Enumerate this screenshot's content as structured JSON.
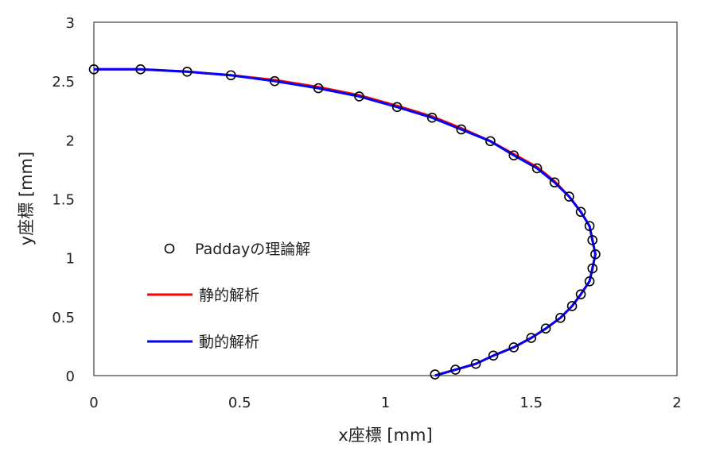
{
  "chart_data": {
    "type": "scatter",
    "xlabel": "x座標 [mm]",
    "ylabel": "y座標 [mm]",
    "xlim": [
      0,
      2
    ],
    "ylim": [
      0,
      3
    ],
    "xticks": [
      "0",
      "0.5",
      "1",
      "1.5",
      "2"
    ],
    "yticks": [
      "0",
      "0.5",
      "1",
      "1.5",
      "2",
      "2.5",
      "3"
    ],
    "grid": false,
    "legend_position": "center-left",
    "series": [
      {
        "name": "Paddayの理論解",
        "style": "markers",
        "color": "#000000",
        "points": [
          [
            0.0,
            2.6
          ],
          [
            0.16,
            2.6
          ],
          [
            0.32,
            2.58
          ],
          [
            0.47,
            2.55
          ],
          [
            0.62,
            2.5
          ],
          [
            0.77,
            2.44
          ],
          [
            0.91,
            2.37
          ],
          [
            1.04,
            2.28
          ],
          [
            1.16,
            2.19
          ],
          [
            1.26,
            2.09
          ],
          [
            1.36,
            1.99
          ],
          [
            1.44,
            1.87
          ],
          [
            1.52,
            1.76
          ],
          [
            1.58,
            1.64
          ],
          [
            1.63,
            1.52
          ],
          [
            1.67,
            1.39
          ],
          [
            1.7,
            1.27
          ],
          [
            1.71,
            1.15
          ],
          [
            1.72,
            1.03
          ],
          [
            1.71,
            0.91
          ],
          [
            1.7,
            0.8
          ],
          [
            1.67,
            0.69
          ],
          [
            1.64,
            0.59
          ],
          [
            1.6,
            0.49
          ],
          [
            1.55,
            0.4
          ],
          [
            1.5,
            0.32
          ],
          [
            1.44,
            0.24
          ],
          [
            1.37,
            0.17
          ],
          [
            1.31,
            0.1
          ],
          [
            1.24,
            0.05
          ],
          [
            1.17,
            0.01
          ]
        ]
      },
      {
        "name": "静的解析",
        "style": "line",
        "color": "#ff0000",
        "points": [
          [
            0.0,
            2.6
          ],
          [
            0.16,
            2.6
          ],
          [
            0.32,
            2.58
          ],
          [
            0.47,
            2.55
          ],
          [
            0.62,
            2.51
          ],
          [
            0.77,
            2.45
          ],
          [
            0.91,
            2.38
          ],
          [
            1.04,
            2.29
          ],
          [
            1.16,
            2.2
          ],
          [
            1.26,
            2.1
          ],
          [
            1.36,
            1.99
          ],
          [
            1.44,
            1.88
          ],
          [
            1.52,
            1.77
          ],
          [
            1.58,
            1.65
          ],
          [
            1.63,
            1.52
          ],
          [
            1.67,
            1.39
          ],
          [
            1.7,
            1.27
          ],
          [
            1.71,
            1.15
          ],
          [
            1.72,
            1.03
          ],
          [
            1.71,
            0.91
          ],
          [
            1.7,
            0.8
          ],
          [
            1.67,
            0.69
          ],
          [
            1.64,
            0.59
          ],
          [
            1.6,
            0.49
          ],
          [
            1.55,
            0.4
          ],
          [
            1.5,
            0.32
          ],
          [
            1.44,
            0.24
          ],
          [
            1.37,
            0.17
          ],
          [
            1.31,
            0.1
          ],
          [
            1.24,
            0.05
          ],
          [
            1.17,
            0.0
          ]
        ]
      },
      {
        "name": "動的解析",
        "style": "line",
        "color": "#0000ff",
        "points": [
          [
            0.0,
            2.6
          ],
          [
            0.16,
            2.6
          ],
          [
            0.32,
            2.58
          ],
          [
            0.47,
            2.55
          ],
          [
            0.62,
            2.5
          ],
          [
            0.77,
            2.44
          ],
          [
            0.91,
            2.37
          ],
          [
            1.04,
            2.28
          ],
          [
            1.16,
            2.19
          ],
          [
            1.26,
            2.09
          ],
          [
            1.36,
            1.99
          ],
          [
            1.44,
            1.87
          ],
          [
            1.52,
            1.76
          ],
          [
            1.58,
            1.64
          ],
          [
            1.63,
            1.52
          ],
          [
            1.67,
            1.39
          ],
          [
            1.7,
            1.27
          ],
          [
            1.71,
            1.15
          ],
          [
            1.72,
            1.03
          ],
          [
            1.71,
            0.91
          ],
          [
            1.7,
            0.8
          ],
          [
            1.67,
            0.69
          ],
          [
            1.64,
            0.59
          ],
          [
            1.6,
            0.49
          ],
          [
            1.55,
            0.4
          ],
          [
            1.5,
            0.32
          ],
          [
            1.44,
            0.24
          ],
          [
            1.37,
            0.17
          ],
          [
            1.31,
            0.1
          ],
          [
            1.24,
            0.05
          ],
          [
            1.17,
            0.0
          ]
        ]
      }
    ]
  }
}
